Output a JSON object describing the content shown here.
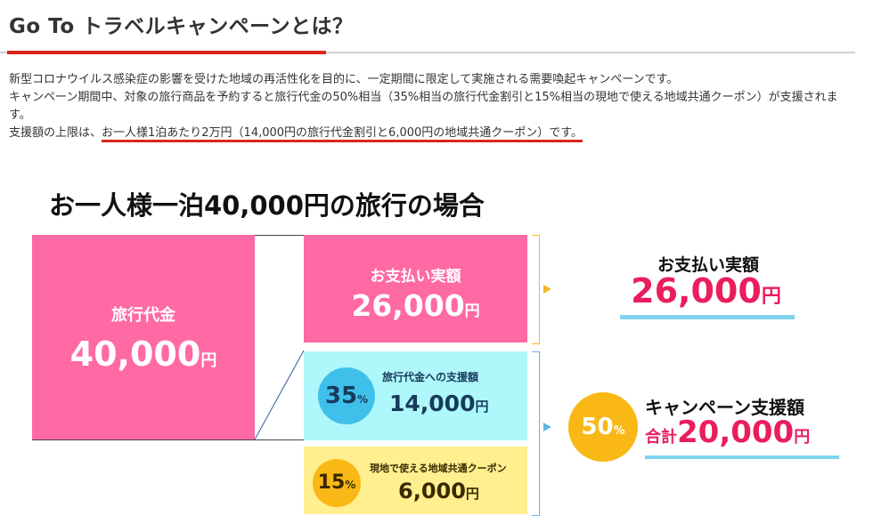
{
  "title": "Go To トラベルキャンペーンとは？",
  "intro": {
    "line1": "新型コロナウイルス感染症の影響を受けた地域の再活性化を目的に、一定期間に限定して実施される需要喚起キャンペーンです。",
    "line2": "キャンペーン期間中、対象の旅行商品を予約すると旅行代金の50%相当（35%相当の旅行代金割引と15%相当の現地で使える地域共通クーポン）が支援されます。",
    "line3_prefix": "支援額の上限は、",
    "line3_highlight": "お一人様1泊あたり2万円（14,000円の旅行代金割引と6,000円の地域共通クーポン）です。"
  },
  "example": {
    "heading": "お一人様一泊40,000円の旅行の場合",
    "travel_cost": {
      "label": "旅行代金",
      "amount": "40,000",
      "unit": "円"
    },
    "payment": {
      "label": "お支払い実額",
      "amount": "26,000",
      "unit": "円"
    },
    "travel_support": {
      "percent": "35",
      "percent_sign": "%",
      "label": "旅行代金への支援額",
      "amount": "14,000",
      "unit": "円"
    },
    "coupon": {
      "percent": "15",
      "percent_sign": "%",
      "label": "現地で使える地域共通クーポン",
      "amount": "6,000",
      "unit": "円"
    },
    "payment_summary": {
      "label": "お支払い実額",
      "amount": "26,000",
      "unit": "円"
    },
    "support_summary": {
      "percent": "50",
      "percent_sign": "%",
      "label": "キャンペーン支援額",
      "prefix": "合計",
      "amount": "20,000",
      "unit": "円"
    }
  },
  "colors": {
    "accent_red": "#d9261c",
    "pink": "#ff69a4",
    "light_cyan": "#aef7fb",
    "light_yellow": "#ffef8f",
    "circle_blue": "#3ec0ea",
    "circle_orange": "#f9b816",
    "amount_red": "#ea1d5d",
    "underline_blue": "#7fd3ef"
  }
}
